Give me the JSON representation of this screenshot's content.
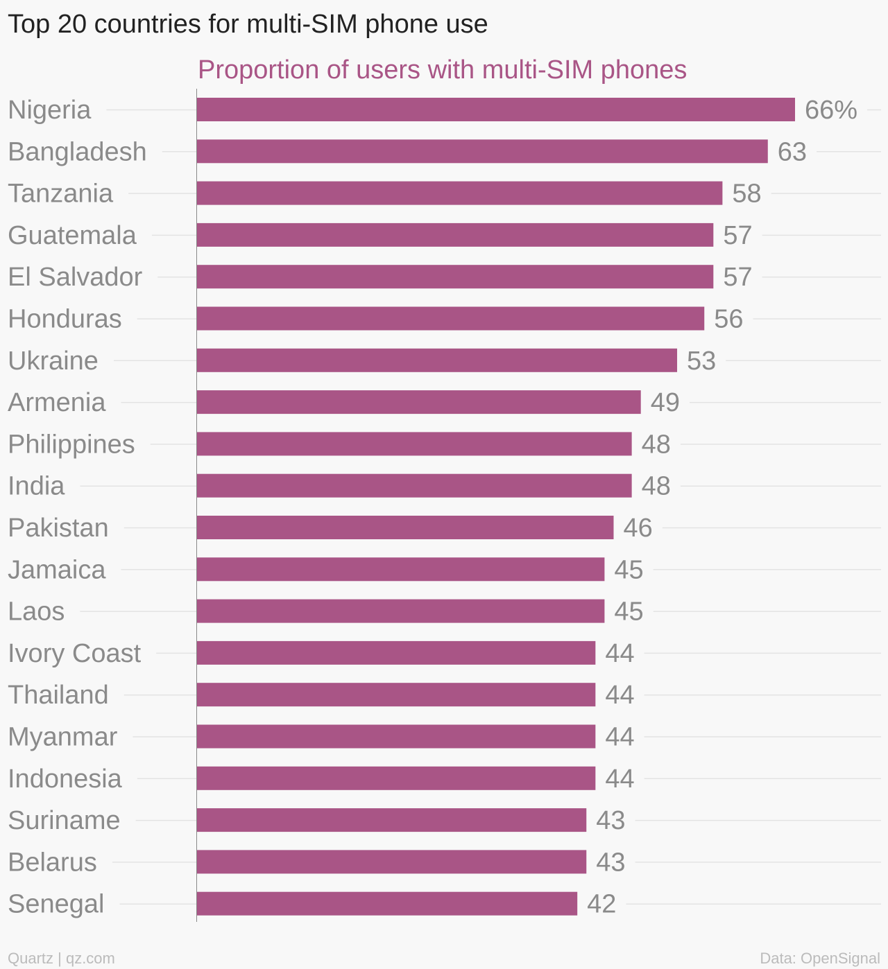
{
  "title": "Top 20 countries for multi-SIM phone use",
  "footer": {
    "source_left": "Quartz | qz.com",
    "source_right": "Data: OpenSignal"
  },
  "colors": {
    "bar": "#a95586",
    "subtitle": "#a95586",
    "label": "#8a8a8a",
    "grid": "#e3e3e3",
    "axis": "#888888"
  },
  "chart_data": {
    "type": "bar",
    "orientation": "horizontal",
    "title": "Top 20 countries for multi-SIM phone use",
    "subtitle": "Proportion of users with multi-SIM phones",
    "categories": [
      "Nigeria",
      "Bangladesh",
      "Tanzania",
      "Guatemala",
      "El Salvador",
      "Honduras",
      "Ukraine",
      "Armenia",
      "Philippines",
      "India",
      "Pakistan",
      "Jamaica",
      "Laos",
      "Ivory Coast",
      "Thailand",
      "Myanmar",
      "Indonesia",
      "Suriname",
      "Belarus",
      "Senegal"
    ],
    "values": [
      66,
      63,
      58,
      57,
      57,
      56,
      53,
      49,
      48,
      48,
      46,
      45,
      45,
      44,
      44,
      44,
      44,
      43,
      43,
      42
    ],
    "value_labels": [
      "66%",
      "63",
      "58",
      "57",
      "57",
      "56",
      "53",
      "49",
      "48",
      "48",
      "46",
      "45",
      "45",
      "44",
      "44",
      "44",
      "44",
      "43",
      "43",
      "42"
    ],
    "xlim": [
      0,
      66
    ],
    "grid": true
  }
}
